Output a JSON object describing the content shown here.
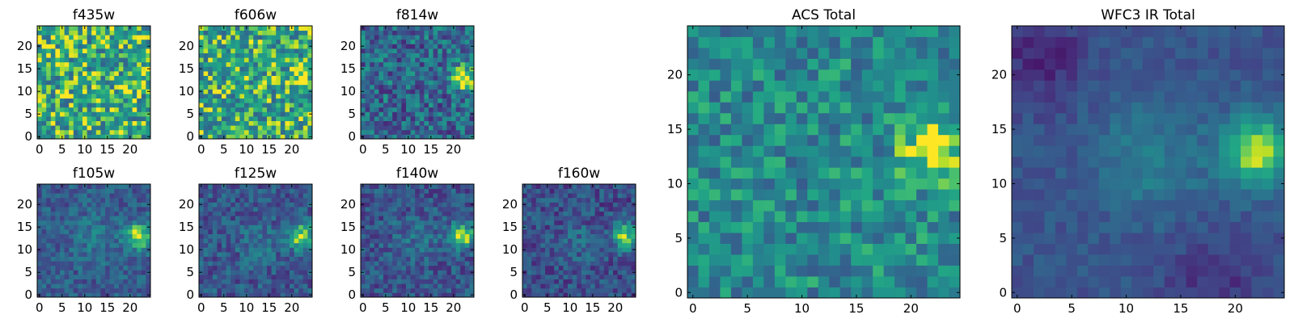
{
  "chart_data": [
    {
      "type": "heatmap",
      "title": "f435w",
      "xticks": [
        "0",
        "5",
        "10",
        "15",
        "20"
      ],
      "yticks": [
        "0",
        "5",
        "10",
        "15",
        "20"
      ],
      "xlim": [
        -0.5,
        24.5
      ],
      "ylim": [
        -0.5,
        24.5
      ],
      "grid": false,
      "colormap": "viridis",
      "pattern": {
        "seed": 11,
        "noise": 0.32,
        "base": 0.72,
        "blobs": []
      }
    },
    {
      "type": "heatmap",
      "title": "f606w",
      "xticks": [
        "0",
        "5",
        "10",
        "15",
        "20"
      ],
      "yticks": [
        "0",
        "5",
        "10",
        "15",
        "20"
      ],
      "xlim": [
        -0.5,
        24.5
      ],
      "ylim": [
        -0.5,
        24.5
      ],
      "grid": false,
      "colormap": "viridis",
      "pattern": {
        "seed": 22,
        "noise": 0.3,
        "base": 0.7,
        "blobs": [
          {
            "x": 22,
            "y": 13,
            "sigma": 1.6,
            "amp": 0.35
          }
        ]
      }
    },
    {
      "type": "heatmap",
      "title": "f814w",
      "xticks": [
        "0",
        "5",
        "10",
        "15",
        "20"
      ],
      "yticks": [
        "0",
        "5",
        "10",
        "15",
        "20"
      ],
      "xlim": [
        -0.5,
        24.5
      ],
      "ylim": [
        -0.5,
        24.5
      ],
      "grid": false,
      "colormap": "viridis",
      "pattern": {
        "seed": 33,
        "noise": 0.28,
        "base": 0.42,
        "blobs": [
          {
            "x": 22,
            "y": 13,
            "sigma": 1.9,
            "amp": 0.6
          }
        ]
      }
    },
    {
      "type": "heatmap",
      "title": "f105w",
      "xticks": [
        "0",
        "5",
        "10",
        "15",
        "20"
      ],
      "yticks": [
        "0",
        "5",
        "10",
        "15",
        "20"
      ],
      "xlim": [
        -0.5,
        24.5
      ],
      "ylim": [
        -0.5,
        24.5
      ],
      "grid": false,
      "colormap": "viridis",
      "pattern": {
        "seed": 44,
        "noise": 0.16,
        "base": 0.36,
        "blobs": [
          {
            "x": 22,
            "y": 13,
            "sigma": 2.1,
            "amp": 0.62
          },
          {
            "x": 12,
            "y": 13,
            "sigma": 3.5,
            "amp": 0.14
          }
        ]
      }
    },
    {
      "type": "heatmap",
      "title": "f125w",
      "xticks": [
        "0",
        "5",
        "10",
        "15",
        "20"
      ],
      "yticks": [
        "0",
        "5",
        "10",
        "15",
        "20"
      ],
      "xlim": [
        -0.5,
        24.5
      ],
      "ylim": [
        -0.5,
        24.5
      ],
      "grid": false,
      "colormap": "viridis",
      "pattern": {
        "seed": 55,
        "noise": 0.18,
        "base": 0.34,
        "blobs": [
          {
            "x": 22,
            "y": 13,
            "sigma": 2.1,
            "amp": 0.62
          },
          {
            "x": 13,
            "y": 12,
            "sigma": 3.0,
            "amp": 0.15
          }
        ]
      }
    },
    {
      "type": "heatmap",
      "title": "f140w",
      "xticks": [
        "0",
        "5",
        "10",
        "15",
        "20"
      ],
      "yticks": [
        "0",
        "5",
        "10",
        "15",
        "20"
      ],
      "xlim": [
        -0.5,
        24.5
      ],
      "ylim": [
        -0.5,
        24.5
      ],
      "grid": false,
      "colormap": "viridis",
      "pattern": {
        "seed": 66,
        "noise": 0.18,
        "base": 0.33,
        "blobs": [
          {
            "x": 22,
            "y": 13,
            "sigma": 2.0,
            "amp": 0.6
          },
          {
            "x": 12,
            "y": 12,
            "sigma": 3.2,
            "amp": 0.12
          }
        ]
      }
    },
    {
      "type": "heatmap",
      "title": "f160w",
      "xticks": [
        "0",
        "5",
        "10",
        "15",
        "20"
      ],
      "yticks": [
        "0",
        "5",
        "10",
        "15",
        "20"
      ],
      "xlim": [
        -0.5,
        24.5
      ],
      "ylim": [
        -0.5,
        24.5
      ],
      "grid": false,
      "colormap": "viridis",
      "pattern": {
        "seed": 77,
        "noise": 0.18,
        "base": 0.3,
        "blobs": [
          {
            "x": 22,
            "y": 13,
            "sigma": 1.9,
            "amp": 0.65
          },
          {
            "x": 12,
            "y": 12,
            "sigma": 3.0,
            "amp": 0.12
          }
        ]
      }
    },
    {
      "type": "heatmap",
      "title": "ACS Total",
      "xticks": [
        "0",
        "5",
        "10",
        "15",
        "20"
      ],
      "yticks": [
        "0",
        "5",
        "10",
        "15",
        "20"
      ],
      "xlim": [
        -0.5,
        24.5
      ],
      "ylim": [
        -0.5,
        24.5
      ],
      "grid": false,
      "colormap": "viridis",
      "pattern": {
        "seed": 88,
        "noise": 0.22,
        "base": 0.58,
        "blobs": [
          {
            "x": 22,
            "y": 13,
            "sigma": 2.0,
            "amp": 0.42
          }
        ]
      }
    },
    {
      "type": "heatmap",
      "title": "WFC3 IR Total",
      "xticks": [
        "0",
        "5",
        "10",
        "15",
        "20"
      ],
      "yticks": [
        "0",
        "5",
        "10",
        "15",
        "20"
      ],
      "xlim": [
        -0.5,
        24.5
      ],
      "ylim": [
        -0.5,
        24.5
      ],
      "grid": false,
      "colormap": "viridis",
      "pattern": {
        "seed": 99,
        "noise": 0.08,
        "base": 0.33,
        "blobs": [
          {
            "x": 22,
            "y": 13,
            "sigma": 2.3,
            "amp": 0.64
          },
          {
            "x": 12,
            "y": 12,
            "sigma": 3.6,
            "amp": 0.2
          },
          {
            "x": 2,
            "y": 22,
            "sigma": 3.0,
            "amp": -0.2
          },
          {
            "x": 18,
            "y": 1,
            "sigma": 3.0,
            "amp": -0.16
          }
        ]
      }
    }
  ]
}
